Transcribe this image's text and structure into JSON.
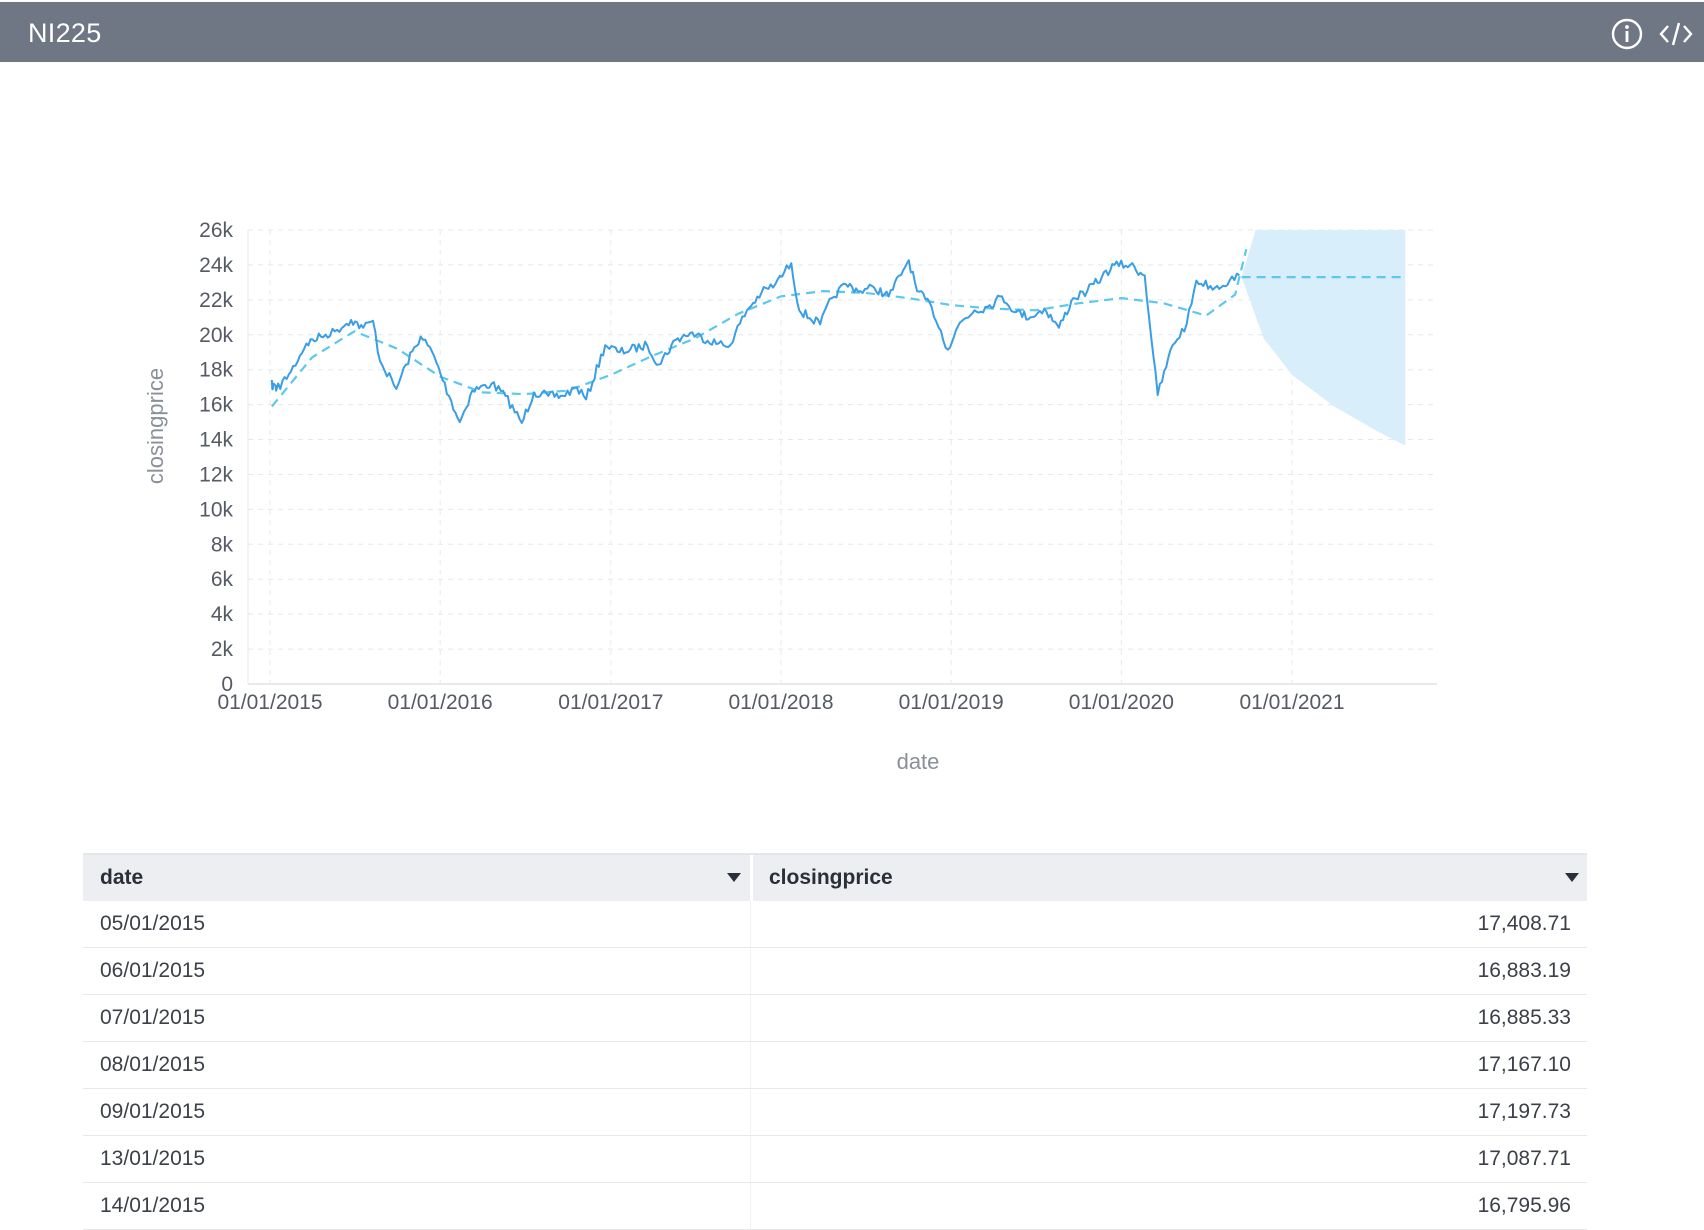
{
  "window": {
    "title": "NI225",
    "icons": [
      "info-icon",
      "code-icon"
    ]
  },
  "chart_data": {
    "type": "line",
    "xlabel": "date",
    "ylabel": "closingprice",
    "ylim": [
      0,
      26000
    ],
    "xlim": [
      "2015-01-01",
      "2021-09-15"
    ],
    "y_ticks": [
      "0",
      "2k",
      "4k",
      "6k",
      "8k",
      "10k",
      "12k",
      "14k",
      "16k",
      "18k",
      "20k",
      "22k",
      "24k",
      "26k"
    ],
    "x_ticks": [
      "01/01/2015",
      "01/01/2016",
      "01/01/2017",
      "01/01/2018",
      "01/01/2019",
      "01/01/2020",
      "01/01/2021"
    ],
    "grid": true,
    "series": [
      {
        "role": "actual",
        "color": "#3a9ee4",
        "points": [
          [
            "2015-01-05",
            17408.71
          ],
          [
            "2015-01-06",
            16883.19
          ],
          [
            "2015-01-07",
            16885.33
          ],
          [
            "2015-01-08",
            17167.1
          ],
          [
            "2015-01-09",
            17197.73
          ],
          [
            "2015-01-13",
            17087.71
          ],
          [
            "2015-01-14",
            16795.96
          ],
          [
            "2015-02-15",
            17900
          ],
          [
            "2015-03-20",
            19500
          ],
          [
            "2015-04-20",
            19900
          ],
          [
            "2015-05-20",
            20200
          ],
          [
            "2015-06-24",
            20850
          ],
          [
            "2015-07-20",
            20400
          ],
          [
            "2015-08-10",
            20800
          ],
          [
            "2015-08-25",
            18500
          ],
          [
            "2015-09-29",
            16900
          ],
          [
            "2015-10-20",
            18300
          ],
          [
            "2015-11-20",
            19900
          ],
          [
            "2015-12-15",
            19000
          ],
          [
            "2016-01-20",
            16500
          ],
          [
            "2016-02-12",
            15000
          ],
          [
            "2016-03-10",
            16800
          ],
          [
            "2016-04-20",
            17200
          ],
          [
            "2016-05-20",
            16500
          ],
          [
            "2016-06-24",
            14950
          ],
          [
            "2016-07-20",
            16700
          ],
          [
            "2016-08-20",
            16500
          ],
          [
            "2016-09-20",
            16500
          ],
          [
            "2016-10-20",
            17000
          ],
          [
            "2016-11-09",
            16300
          ],
          [
            "2016-12-20",
            19400
          ],
          [
            "2017-01-20",
            19000
          ],
          [
            "2017-03-20",
            19400
          ],
          [
            "2017-04-14",
            18300
          ],
          [
            "2017-05-20",
            19700
          ],
          [
            "2017-06-20",
            20100
          ],
          [
            "2017-08-20",
            19500
          ],
          [
            "2017-09-10",
            19300
          ],
          [
            "2017-10-20",
            21400
          ],
          [
            "2017-11-20",
            22400
          ],
          [
            "2017-12-20",
            22900
          ],
          [
            "2018-01-23",
            24100
          ],
          [
            "2018-02-09",
            21400
          ],
          [
            "2018-03-26",
            20600
          ],
          [
            "2018-04-20",
            22100
          ],
          [
            "2018-05-20",
            22900
          ],
          [
            "2018-06-20",
            22500
          ],
          [
            "2018-07-20",
            22700
          ],
          [
            "2018-08-20",
            22200
          ],
          [
            "2018-09-20",
            23700
          ],
          [
            "2018-10-02",
            24270
          ],
          [
            "2018-10-20",
            22500
          ],
          [
            "2018-11-20",
            21600
          ],
          [
            "2018-12-25",
            19150
          ],
          [
            "2019-01-20",
            20700
          ],
          [
            "2019-02-20",
            21400
          ],
          [
            "2019-03-20",
            21600
          ],
          [
            "2019-04-20",
            22200
          ],
          [
            "2019-05-20",
            21300
          ],
          [
            "2019-06-20",
            21000
          ],
          [
            "2019-07-20",
            21500
          ],
          [
            "2019-08-20",
            20400
          ],
          [
            "2019-09-20",
            22100
          ],
          [
            "2019-10-20",
            22500
          ],
          [
            "2019-11-20",
            23300
          ],
          [
            "2019-12-17",
            24000
          ],
          [
            "2020-01-20",
            24000
          ],
          [
            "2020-02-20",
            23400
          ],
          [
            "2020-03-19",
            16550
          ],
          [
            "2020-04-20",
            19400
          ],
          [
            "2020-05-20",
            20600
          ],
          [
            "2020-06-10",
            23100
          ],
          [
            "2020-07-20",
            22700
          ],
          [
            "2020-08-20",
            23100
          ],
          [
            "2020-09-10",
            23400
          ]
        ]
      },
      {
        "role": "trend",
        "color": "#5bc8ec",
        "dashed": true,
        "points": [
          [
            "2015-01-05",
            15900
          ],
          [
            "2015-04-01",
            18700
          ],
          [
            "2015-07-01",
            20200
          ],
          [
            "2015-10-01",
            19200
          ],
          [
            "2016-01-01",
            17600
          ],
          [
            "2016-04-01",
            16700
          ],
          [
            "2016-07-01",
            16600
          ],
          [
            "2016-10-01",
            16800
          ],
          [
            "2017-01-01",
            17700
          ],
          [
            "2017-04-01",
            18800
          ],
          [
            "2017-07-01",
            19800
          ],
          [
            "2017-10-01",
            21200
          ],
          [
            "2018-01-01",
            22200
          ],
          [
            "2018-04-01",
            22500
          ],
          [
            "2018-07-01",
            22400
          ],
          [
            "2018-10-01",
            22100
          ],
          [
            "2019-01-01",
            21700
          ],
          [
            "2019-04-01",
            21500
          ],
          [
            "2019-07-01",
            21400
          ],
          [
            "2019-10-01",
            21800
          ],
          [
            "2020-01-01",
            22100
          ],
          [
            "2020-04-01",
            21800
          ],
          [
            "2020-07-01",
            21100
          ],
          [
            "2020-09-01",
            22300
          ],
          [
            "2020-09-25",
            24900
          ]
        ]
      },
      {
        "role": "forecast",
        "color": "#5bc8ec",
        "dashed": true,
        "points": [
          [
            "2020-09-15",
            23300
          ],
          [
            "2021-09-01",
            23300
          ]
        ]
      }
    ],
    "forecast_band": {
      "color": "#d9eefb",
      "upper": [
        [
          "2020-09-15",
          23300
        ],
        [
          "2020-10-15",
          26000
        ],
        [
          "2021-09-01",
          26000
        ]
      ],
      "lower": [
        [
          "2020-09-15",
          23300
        ],
        [
          "2020-11-01",
          19800
        ],
        [
          "2021-01-01",
          17700
        ],
        [
          "2021-04-01",
          15900
        ],
        [
          "2021-07-01",
          14500
        ],
        [
          "2021-09-01",
          13650
        ]
      ]
    }
  },
  "table": {
    "columns": [
      "date",
      "closingprice"
    ],
    "rows": [
      [
        "05/01/2015",
        "17,408.71"
      ],
      [
        "06/01/2015",
        "16,883.19"
      ],
      [
        "07/01/2015",
        "16,885.33"
      ],
      [
        "08/01/2015",
        "17,167.10"
      ],
      [
        "09/01/2015",
        "17,197.73"
      ],
      [
        "13/01/2015",
        "17,087.71"
      ],
      [
        "14/01/2015",
        "16,795.96"
      ]
    ]
  }
}
